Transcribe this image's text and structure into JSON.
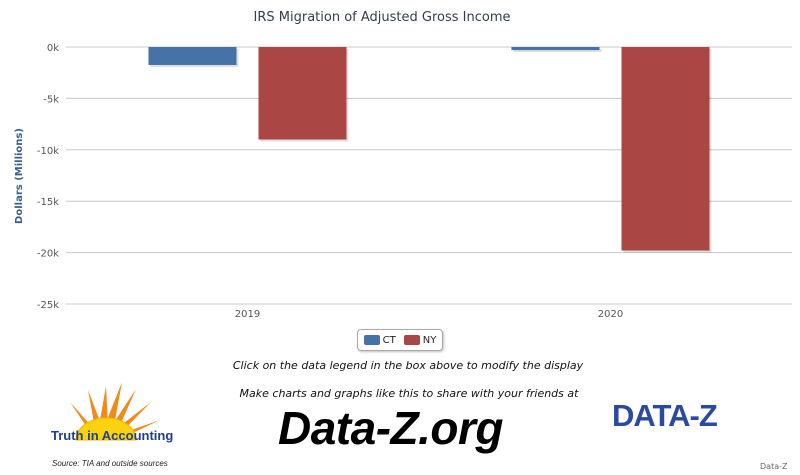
{
  "chart_data": {
    "type": "bar",
    "title": "IRS Migration of Adjusted Gross Income",
    "ylabel": "Dollars (Millions)",
    "xlabel": "",
    "categories": [
      "2019",
      "2020"
    ],
    "series": [
      {
        "name": "CT",
        "color": "#4572a7",
        "values": [
          -1750,
          -300
        ]
      },
      {
        "name": "NY",
        "color": "#aa4643",
        "values": [
          -9000,
          -19800
        ]
      }
    ],
    "ylim": [
      -25000,
      0
    ],
    "yticks": [
      0,
      -5000,
      -10000,
      -15000,
      -20000,
      -25000
    ],
    "ytick_labels": [
      "0k",
      "-5k",
      "-10k",
      "-15k",
      "-20k",
      "-25k"
    ],
    "grid": true,
    "legend_position": "bottom-center"
  },
  "legend": {
    "items": [
      {
        "label": "CT",
        "color": "#4572a7"
      },
      {
        "label": "NY",
        "color": "#aa4643"
      }
    ]
  },
  "notes": {
    "legend_hint": "Click on the data legend in the box above to modify the display",
    "share": "Make charts and graphs like this to share with your friends at"
  },
  "branding": {
    "tia_name": "Truth in Accounting",
    "site_url": "Data-Z.org",
    "dz_logo": "DATA-Z",
    "source": "Source: TIA and outside sources",
    "credit": "Data-Z"
  }
}
